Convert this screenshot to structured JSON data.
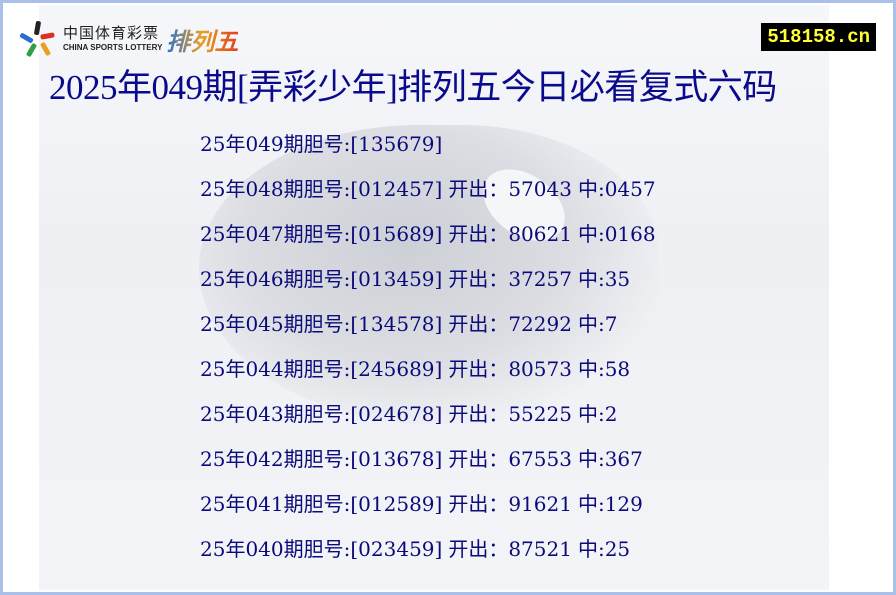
{
  "header": {
    "logo": {
      "cn": "中国体育彩票",
      "en": "CHINA SPORTS LOTTERY",
      "game": "排列五"
    },
    "site": "518158.cn",
    "title": "2025年049期[弄彩少年]排列五今日必看复式六码"
  },
  "rows": [
    {
      "period": "25年049期胆号:",
      "picks": "[135679]",
      "draw_label": "",
      "draw": "",
      "hit_label": "",
      "hit": ""
    },
    {
      "period": "25年048期胆号:",
      "picks": "[012457]",
      "draw_label": "开出：",
      "draw": "57043",
      "hit_label": "中:",
      "hit": "0457"
    },
    {
      "period": "25年047期胆号:",
      "picks": "[015689]",
      "draw_label": "开出：",
      "draw": "80621",
      "hit_label": "中:",
      "hit": "0168"
    },
    {
      "period": "25年046期胆号:",
      "picks": "[013459]",
      "draw_label": "开出：",
      "draw": "37257",
      "hit_label": "中:",
      "hit": "35"
    },
    {
      "period": "25年045期胆号:",
      "picks": "[134578]",
      "draw_label": "开出：",
      "draw": "72292",
      "hit_label": "中:",
      "hit": "7"
    },
    {
      "period": "25年044期胆号:",
      "picks": "[245689]",
      "draw_label": "开出：",
      "draw": "80573",
      "hit_label": "中:",
      "hit": "58"
    },
    {
      "period": "25年043期胆号:",
      "picks": "[024678]",
      "draw_label": "开出：",
      "draw": "55225",
      "hit_label": "中:",
      "hit": "2"
    },
    {
      "period": "25年042期胆号:",
      "picks": "[013678]",
      "draw_label": "开出：",
      "draw": "67553",
      "hit_label": "中:",
      "hit": "367"
    },
    {
      "period": "25年041期胆号:",
      "picks": "[012589]",
      "draw_label": "开出：",
      "draw": "91621",
      "hit_label": "中:",
      "hit": "129"
    },
    {
      "period": "25年040期胆号:",
      "picks": "[023459]",
      "draw_label": "开出：",
      "draw": "87521",
      "hit_label": "中:",
      "hit": "25"
    }
  ],
  "colors": {
    "text": "#0a0a7a",
    "border": "#a9c0ea",
    "badge_bg": "#000000",
    "badge_text": "#ffff33"
  }
}
